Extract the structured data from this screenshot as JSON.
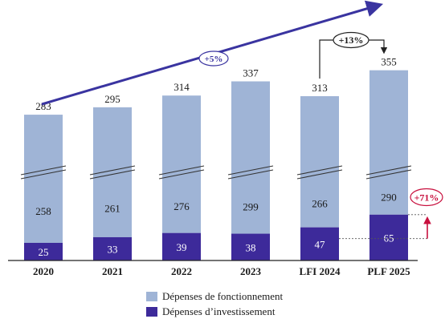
{
  "chart_data": {
    "type": "bar",
    "stacked": true,
    "categories": [
      "2020",
      "2021",
      "2022",
      "2023",
      "LFI 2024",
      "PLF 2025"
    ],
    "series": [
      {
        "name": "Dépenses d’investissement",
        "values": [
          25,
          33,
          39,
          38,
          47,
          65
        ],
        "color": "#3d2a9a"
      },
      {
        "name": "Dépenses de fonctionnement",
        "values": [
          258,
          261,
          276,
          299,
          266,
          290
        ],
        "color": "#9fb4d6"
      }
    ],
    "totals": [
      283,
      295,
      314,
      337,
      313,
      355
    ],
    "broken_axis": true,
    "legend_position": "bottom",
    "annotations": {
      "trend_label": "+5%",
      "total_change_label": "+13%",
      "investment_change_label": "+71%"
    },
    "colors": {
      "trend": "#3a34a0",
      "investment_change": "#c8103e",
      "axis": "#222222"
    }
  }
}
